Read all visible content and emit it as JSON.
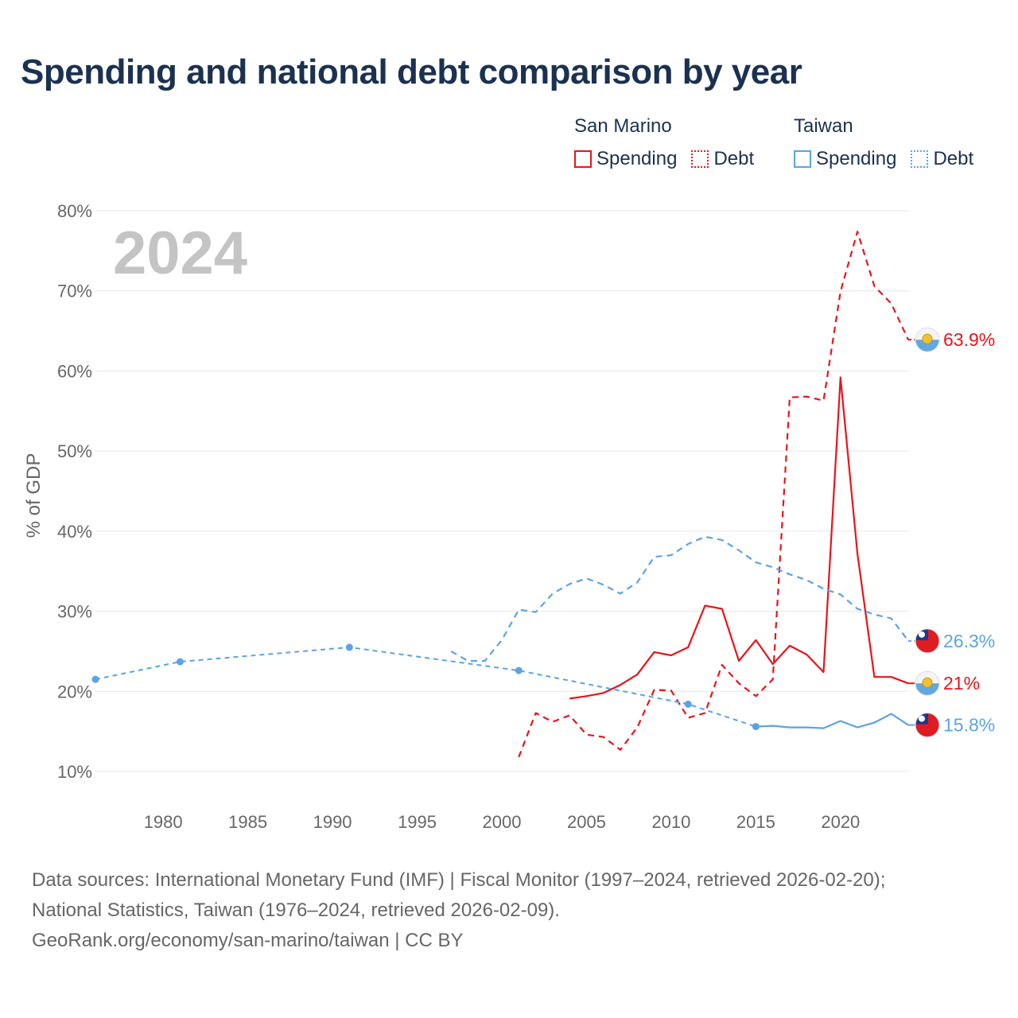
{
  "title": "Spending and national debt comparison by year",
  "year_label": "2024",
  "legend": {
    "groups": [
      {
        "name": "San Marino",
        "items": [
          {
            "label": "Spending",
            "style": "solid",
            "color": "#e8141b"
          },
          {
            "label": "Debt",
            "style": "dotted",
            "color": "#e8141b"
          }
        ]
      },
      {
        "name": "Taiwan",
        "items": [
          {
            "label": "Spending",
            "style": "solid",
            "color": "#5ba3e6"
          },
          {
            "label": "Debt",
            "style": "dotted",
            "color": "#5ba3e6"
          }
        ]
      }
    ]
  },
  "colors": {
    "san_marino": "#e8141b",
    "taiwan": "#5ba3e6",
    "title": "#1b3150",
    "grid": "#e6e6e6",
    "axis_text": "#666666",
    "year_watermark": "#c4c4c4"
  },
  "footer": {
    "line1": "Data sources: International Monetary Fund (IMF) | Fiscal Monitor (1997–2024, retrieved 2026-02-20);",
    "line2": "National Statistics, Taiwan (1976–2024, retrieved 2026-02-09).",
    "line3": "GeoRank.org/economy/san-marino/taiwan | CC BY"
  },
  "chart_data": {
    "type": "line",
    "title": "Spending and national debt comparison by year",
    "ylabel": "% of GDP",
    "xlabel": "",
    "xlim": [
      1976,
      2024
    ],
    "ylim": [
      10,
      80
    ],
    "x_ticks": [
      1980,
      1985,
      1990,
      1995,
      2000,
      2005,
      2010,
      2015,
      2020
    ],
    "y_ticks": [
      10,
      20,
      30,
      40,
      50,
      60,
      70,
      80
    ],
    "y_tick_suffix": "%",
    "grid": true,
    "series": [
      {
        "name": "San Marino Debt",
        "country": "San Marino",
        "metric": "Debt",
        "style": "dashed",
        "color": "#e8141b",
        "end_label": "63.9%",
        "flag": "san-marino",
        "points": [
          [
            2001,
            11.8
          ],
          [
            2002,
            17.3
          ],
          [
            2003,
            16.2
          ],
          [
            2004,
            17.0
          ],
          [
            2005,
            14.6
          ],
          [
            2006,
            14.3
          ],
          [
            2007,
            12.7
          ],
          [
            2008,
            15.5
          ],
          [
            2009,
            20.2
          ],
          [
            2010,
            20.1
          ],
          [
            2011,
            16.7
          ],
          [
            2012,
            17.3
          ],
          [
            2013,
            23.3
          ],
          [
            2014,
            21.0
          ],
          [
            2015,
            19.4
          ],
          [
            2016,
            21.5
          ],
          [
            2017,
            56.7
          ],
          [
            2018,
            56.8
          ],
          [
            2019,
            56.3
          ],
          [
            2020,
            69.9
          ],
          [
            2021,
            77.4
          ],
          [
            2022,
            70.6
          ],
          [
            2023,
            68.4
          ],
          [
            2024,
            63.9
          ]
        ]
      },
      {
        "name": "San Marino Spending",
        "country": "San Marino",
        "metric": "Spending",
        "style": "solid",
        "color": "#e8141b",
        "end_label": "21%",
        "flag": "san-marino",
        "points": [
          [
            2004,
            19.1
          ],
          [
            2005,
            19.4
          ],
          [
            2006,
            19.8
          ],
          [
            2007,
            20.8
          ],
          [
            2008,
            22.1
          ],
          [
            2009,
            24.9
          ],
          [
            2010,
            24.5
          ],
          [
            2011,
            25.5
          ],
          [
            2012,
            30.7
          ],
          [
            2013,
            30.3
          ],
          [
            2014,
            23.8
          ],
          [
            2015,
            26.4
          ],
          [
            2016,
            23.4
          ],
          [
            2017,
            25.7
          ],
          [
            2018,
            24.6
          ],
          [
            2019,
            22.4
          ],
          [
            2020,
            59.2
          ],
          [
            2021,
            37.2
          ],
          [
            2022,
            21.8
          ],
          [
            2023,
            21.8
          ],
          [
            2024,
            21.0
          ]
        ]
      },
      {
        "name": "Taiwan Debt",
        "country": "Taiwan",
        "metric": "Debt",
        "style": "dashed",
        "color": "#5ba3e6",
        "end_label": "26.3%",
        "flag": "taiwan",
        "points": [
          [
            1997,
            25.0
          ],
          [
            1998,
            23.8
          ],
          [
            1999,
            23.8
          ],
          [
            2000,
            26.4
          ],
          [
            2001,
            30.2
          ],
          [
            2002,
            29.9
          ],
          [
            2003,
            32.2
          ],
          [
            2004,
            33.4
          ],
          [
            2005,
            34.1
          ],
          [
            2006,
            33.3
          ],
          [
            2007,
            32.2
          ],
          [
            2008,
            33.6
          ],
          [
            2009,
            36.8
          ],
          [
            2010,
            37.0
          ],
          [
            2011,
            38.4
          ],
          [
            2012,
            39.3
          ],
          [
            2013,
            38.9
          ],
          [
            2014,
            37.6
          ],
          [
            2015,
            36.1
          ],
          [
            2016,
            35.5
          ],
          [
            2017,
            34.6
          ],
          [
            2018,
            33.9
          ],
          [
            2019,
            32.8
          ],
          [
            2020,
            32.1
          ],
          [
            2021,
            30.3
          ],
          [
            2022,
            29.6
          ],
          [
            2023,
            29.1
          ],
          [
            2024,
            26.3
          ]
        ]
      },
      {
        "name": "Taiwan Spending",
        "country": "Taiwan",
        "metric": "Spending",
        "style": "mixed",
        "color": "#5ba3e6",
        "end_label": "15.8%",
        "flag": "taiwan",
        "sparse_dashed_points": [
          [
            1976,
            21.5
          ],
          [
            1981,
            23.7
          ],
          [
            1991,
            25.5
          ],
          [
            2001,
            22.6
          ],
          [
            2011,
            18.4
          ],
          [
            2015,
            15.6
          ]
        ],
        "points": [
          [
            2015,
            15.6
          ],
          [
            2016,
            15.7
          ],
          [
            2017,
            15.5
          ],
          [
            2018,
            15.5
          ],
          [
            2019,
            15.4
          ],
          [
            2020,
            16.3
          ],
          [
            2021,
            15.5
          ],
          [
            2022,
            16.1
          ],
          [
            2023,
            17.2
          ],
          [
            2024,
            15.8
          ]
        ]
      }
    ]
  }
}
